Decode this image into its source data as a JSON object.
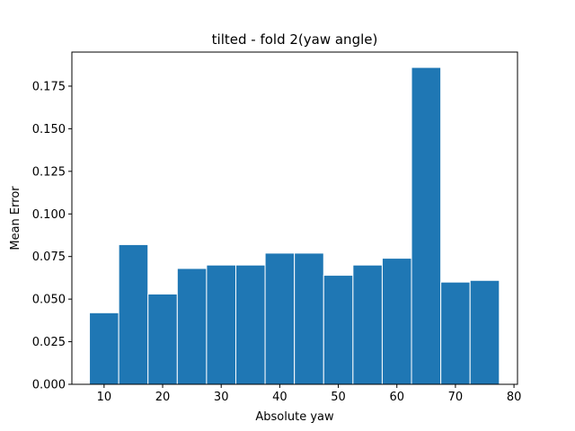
{
  "chart_data": {
    "type": "bar",
    "title": "tilted - fold 2(yaw angle)",
    "xlabel": "Absolute yaw",
    "ylabel": "Mean Error",
    "xlim": [
      4.5,
      80.6
    ],
    "ylim": [
      0,
      0.195
    ],
    "xticks": [
      10,
      20,
      30,
      40,
      50,
      60,
      70,
      80
    ],
    "yticks": [
      0.0,
      0.025,
      0.05,
      0.075,
      0.1,
      0.125,
      0.15,
      0.175
    ],
    "ytick_labels": [
      "0.000",
      "0.025",
      "0.050",
      "0.075",
      "0.100",
      "0.125",
      "0.150",
      "0.175"
    ],
    "bar_color": "#1f77b4",
    "bar_edge_color": "#ffffff",
    "bars": [
      {
        "x0": 7.5,
        "x1": 12.5,
        "value": 0.042
      },
      {
        "x0": 12.5,
        "x1": 17.5,
        "value": 0.082
      },
      {
        "x0": 17.5,
        "x1": 22.5,
        "value": 0.053
      },
      {
        "x0": 22.5,
        "x1": 27.5,
        "value": 0.068
      },
      {
        "x0": 27.5,
        "x1": 32.5,
        "value": 0.07
      },
      {
        "x0": 32.5,
        "x1": 37.5,
        "value": 0.07
      },
      {
        "x0": 37.5,
        "x1": 42.5,
        "value": 0.077
      },
      {
        "x0": 42.5,
        "x1": 47.5,
        "value": 0.077
      },
      {
        "x0": 47.5,
        "x1": 52.5,
        "value": 0.064
      },
      {
        "x0": 52.5,
        "x1": 57.5,
        "value": 0.07
      },
      {
        "x0": 57.5,
        "x1": 62.5,
        "value": 0.074
      },
      {
        "x0": 62.5,
        "x1": 67.5,
        "value": 0.186
      },
      {
        "x0": 67.5,
        "x1": 72.5,
        "value": 0.06
      },
      {
        "x0": 72.5,
        "x1": 77.5,
        "value": 0.061
      }
    ]
  }
}
